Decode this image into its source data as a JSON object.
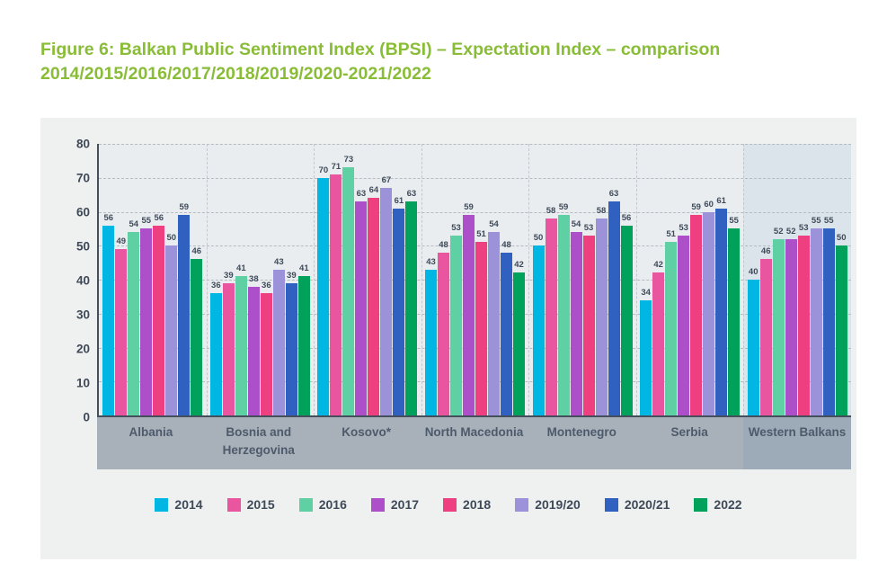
{
  "figure": {
    "title_line1": "Figure 6: Balkan Public Sentiment Index (BPSI) – Expectation Index – comparison",
    "title_line2": "2014/2015/2016/2017/2018/2019/2020-2021/2022"
  },
  "colors": {
    "title_green": "#8abd37",
    "text_dark": "#3f4a59",
    "card_bg": "#eff1f1",
    "plot_bg": "#e9edf0",
    "band_bg": "#a8b1b9",
    "wb_band_bg": "#9dabb8",
    "wb_highlight_bg": "#dce4eb"
  },
  "chart_data": {
    "type": "bar",
    "title": "Balkan Public Sentiment Index (BPSI) – Expectation Index – comparison 2014/2015/2016/2017/2018/2019/2020-2021/2022",
    "categories": [
      "Albania",
      "Bosnia and Herzegovina",
      "Kosovo*",
      "North Macedonia",
      "Montenegro",
      "Serbia",
      "Western Balkans"
    ],
    "highlighted_category": "Western Balkans",
    "y_ticks": [
      0,
      10,
      20,
      30,
      40,
      50,
      60,
      70,
      80
    ],
    "ylim": [
      0,
      80
    ],
    "grid": "dashed horizontal gridlines and dashed vertical category separators",
    "legend_position": "bottom",
    "value_labels": true,
    "series": [
      {
        "name": "2014",
        "color": "#00b6e3",
        "values": [
          56,
          36,
          70,
          43,
          50,
          34,
          40
        ]
      },
      {
        "name": "2015",
        "color": "#e9559f",
        "values": [
          49,
          39,
          71,
          48,
          58,
          42,
          46
        ]
      },
      {
        "name": "2016",
        "color": "#5fcfa4",
        "values": [
          54,
          41,
          73,
          53,
          59,
          51,
          52
        ]
      },
      {
        "name": "2017",
        "color": "#ad4fc9",
        "values": [
          55,
          38,
          63,
          59,
          54,
          53,
          52
        ]
      },
      {
        "name": "2018",
        "color": "#ee3f80",
        "values": [
          56,
          36,
          64,
          51,
          53,
          59,
          53
        ]
      },
      {
        "name": "2019/20",
        "color": "#9b92da",
        "values": [
          50,
          43,
          67,
          54,
          58,
          60,
          55
        ]
      },
      {
        "name": "2020/21",
        "color": "#3061c1",
        "values": [
          59,
          39,
          61,
          48,
          63,
          61,
          55
        ]
      },
      {
        "name": "2022",
        "color": "#00a25b",
        "values": [
          46,
          41,
          63,
          42,
          56,
          55,
          50
        ]
      }
    ]
  }
}
